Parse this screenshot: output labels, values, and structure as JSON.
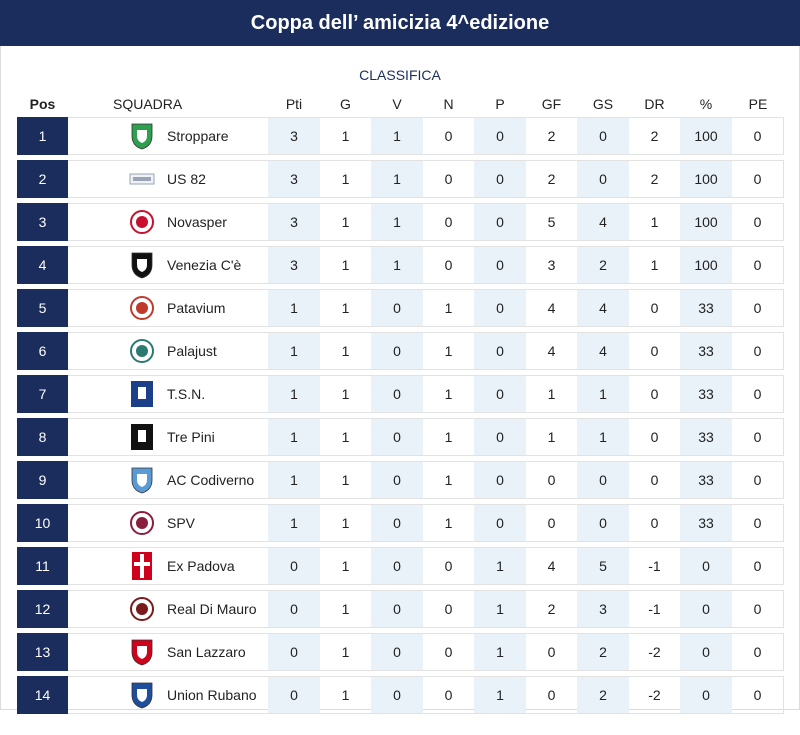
{
  "header": {
    "title": "Coppa dell’ amicizia 4^edizione"
  },
  "standings": {
    "caption": "CLASSIFICA",
    "columns": {
      "pos": "Pos",
      "team": "SQUADRA",
      "pts": "Pti",
      "g": "G",
      "v": "V",
      "n": "N",
      "p": "P",
      "gf": "GF",
      "gs": "GS",
      "dr": "DR",
      "pct": "%",
      "pe": "PE"
    },
    "rows": [
      {
        "pos": "1",
        "team": "Stroppare",
        "logo": "crest-green-shield",
        "color": "#2e9e4f",
        "pts": "3",
        "g": "1",
        "v": "1",
        "n": "0",
        "p": "0",
        "gf": "2",
        "gs": "0",
        "dr": "2",
        "pct": "100",
        "pe": "0"
      },
      {
        "pos": "2",
        "team": "US 82",
        "logo": "crest-banner",
        "color": "#9aa4b4",
        "pts": "3",
        "g": "1",
        "v": "1",
        "n": "0",
        "p": "0",
        "gf": "2",
        "gs": "0",
        "dr": "2",
        "pct": "100",
        "pe": "0"
      },
      {
        "pos": "3",
        "team": "Novasper",
        "logo": "crest-red-circle",
        "color": "#c8102e",
        "pts": "3",
        "g": "1",
        "v": "1",
        "n": "0",
        "p": "0",
        "gf": "5",
        "gs": "4",
        "dr": "1",
        "pct": "100",
        "pe": "0"
      },
      {
        "pos": "4",
        "team": "Venezia C'è",
        "logo": "crest-black-shield",
        "color": "#111111",
        "pts": "3",
        "g": "1",
        "v": "1",
        "n": "0",
        "p": "0",
        "gf": "3",
        "gs": "2",
        "dr": "1",
        "pct": "100",
        "pe": "0"
      },
      {
        "pos": "5",
        "team": "Patavium",
        "logo": "crest-red-circle",
        "color": "#c0392b",
        "pts": "1",
        "g": "1",
        "v": "0",
        "n": "1",
        "p": "0",
        "gf": "4",
        "gs": "4",
        "dr": "0",
        "pct": "33",
        "pe": "0"
      },
      {
        "pos": "6",
        "team": "Palajust",
        "logo": "crest-teal-circle",
        "color": "#2a7a6f",
        "pts": "1",
        "g": "1",
        "v": "0",
        "n": "1",
        "p": "0",
        "gf": "4",
        "gs": "4",
        "dr": "0",
        "pct": "33",
        "pe": "0"
      },
      {
        "pos": "7",
        "team": "T.S.N.",
        "logo": "crest-blue-square",
        "color": "#1c3f8a",
        "pts": "1",
        "g": "1",
        "v": "0",
        "n": "1",
        "p": "0",
        "gf": "1",
        "gs": "1",
        "dr": "0",
        "pct": "33",
        "pe": "0"
      },
      {
        "pos": "8",
        "team": "Tre Pini",
        "logo": "crest-black-square",
        "color": "#111111",
        "pts": "1",
        "g": "1",
        "v": "0",
        "n": "1",
        "p": "0",
        "gf": "1",
        "gs": "1",
        "dr": "0",
        "pct": "33",
        "pe": "0"
      },
      {
        "pos": "9",
        "team": "AC Codiverno",
        "logo": "crest-lightblue-shield",
        "color": "#5b9bd5",
        "pts": "1",
        "g": "1",
        "v": "0",
        "n": "1",
        "p": "0",
        "gf": "0",
        "gs": "0",
        "dr": "0",
        "pct": "33",
        "pe": "0"
      },
      {
        "pos": "10",
        "team": "SPV",
        "logo": "crest-maroon-circle",
        "color": "#8b1e3f",
        "pts": "1",
        "g": "1",
        "v": "0",
        "n": "1",
        "p": "0",
        "gf": "0",
        "gs": "0",
        "dr": "0",
        "pct": "33",
        "pe": "0"
      },
      {
        "pos": "11",
        "team": "Ex Padova",
        "logo": "crest-red-cross",
        "color": "#d0021b",
        "pts": "0",
        "g": "1",
        "v": "0",
        "n": "0",
        "p": "1",
        "gf": "4",
        "gs": "5",
        "dr": "-1",
        "pct": "0",
        "pe": "0"
      },
      {
        "pos": "12",
        "team": "Real Di Mauro",
        "logo": "crest-dark-circle",
        "color": "#7a1a1a",
        "pts": "0",
        "g": "1",
        "v": "0",
        "n": "0",
        "p": "1",
        "gf": "2",
        "gs": "3",
        "dr": "-1",
        "pct": "0",
        "pe": "0"
      },
      {
        "pos": "13",
        "team": "San Lazzaro",
        "logo": "crest-red-shield",
        "color": "#d0021b",
        "pts": "0",
        "g": "1",
        "v": "0",
        "n": "0",
        "p": "1",
        "gf": "0",
        "gs": "2",
        "dr": "-2",
        "pct": "0",
        "pe": "0"
      },
      {
        "pos": "14",
        "team": "Union Rubano",
        "logo": "crest-blue-shield",
        "color": "#1f4e9c",
        "pts": "0",
        "g": "1",
        "v": "0",
        "n": "0",
        "p": "1",
        "gf": "0",
        "gs": "2",
        "dr": "-2",
        "pct": "0",
        "pe": "0"
      }
    ]
  }
}
